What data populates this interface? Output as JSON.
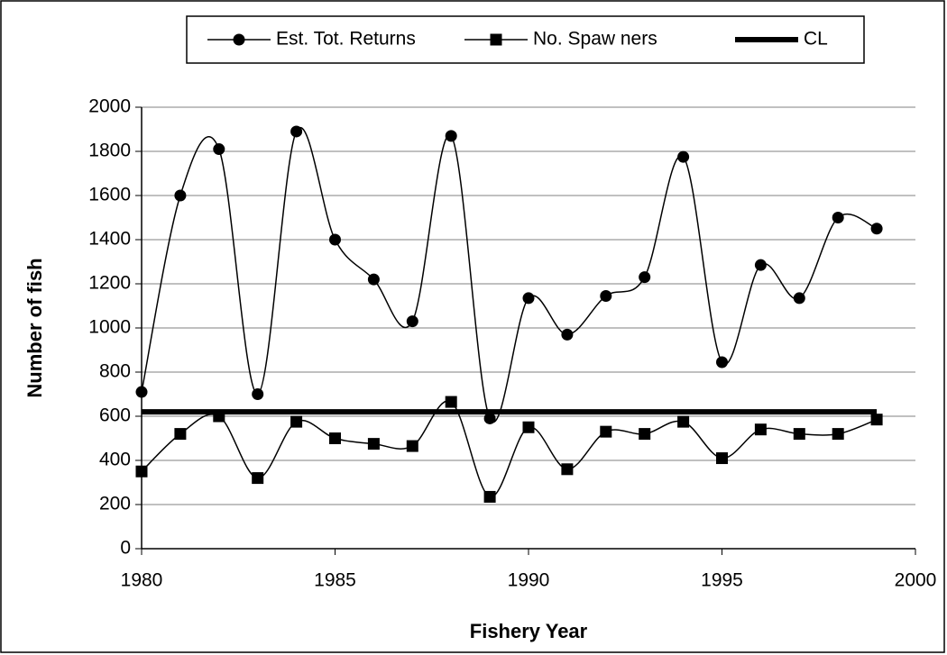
{
  "chart_data": {
    "type": "line",
    "x": [
      1980,
      1981,
      1982,
      1983,
      1984,
      1985,
      1986,
      1987,
      1988,
      1989,
      1990,
      1991,
      1992,
      1993,
      1994,
      1995,
      1996,
      1997,
      1998,
      1999
    ],
    "series": [
      {
        "name": "Est. Tot. Returns",
        "color": "#000000",
        "marker": "circle",
        "values": [
          710,
          1600,
          1810,
          700,
          1890,
          1400,
          1220,
          1030,
          1870,
          590,
          1135,
          970,
          1145,
          1230,
          1775,
          845,
          1285,
          1135,
          1500,
          1450
        ]
      },
      {
        "name": "No. Spaw ners",
        "color": "#000000",
        "marker": "square",
        "values": [
          350,
          520,
          600,
          320,
          575,
          500,
          475,
          465,
          665,
          235,
          550,
          360,
          530,
          520,
          575,
          410,
          540,
          520,
          520,
          585
        ]
      },
      {
        "name": "CL",
        "color": "#000000",
        "marker": "none",
        "values": [
          620,
          620,
          620,
          620,
          620,
          620,
          620,
          620,
          620,
          620,
          620,
          620,
          620,
          620,
          620,
          620,
          620,
          620,
          620,
          620
        ]
      }
    ],
    "xlabel": "Fishery Year",
    "ylabel": "Number of fish",
    "xlim": [
      1980,
      2000
    ],
    "xticks": [
      1980,
      1985,
      1990,
      1995,
      2000
    ],
    "ylim": [
      0,
      2000
    ],
    "yticks": [
      0,
      200,
      400,
      600,
      800,
      1000,
      1200,
      1400,
      1600,
      1800,
      2000
    ],
    "grid": true,
    "smooth": true,
    "legend": "top"
  }
}
